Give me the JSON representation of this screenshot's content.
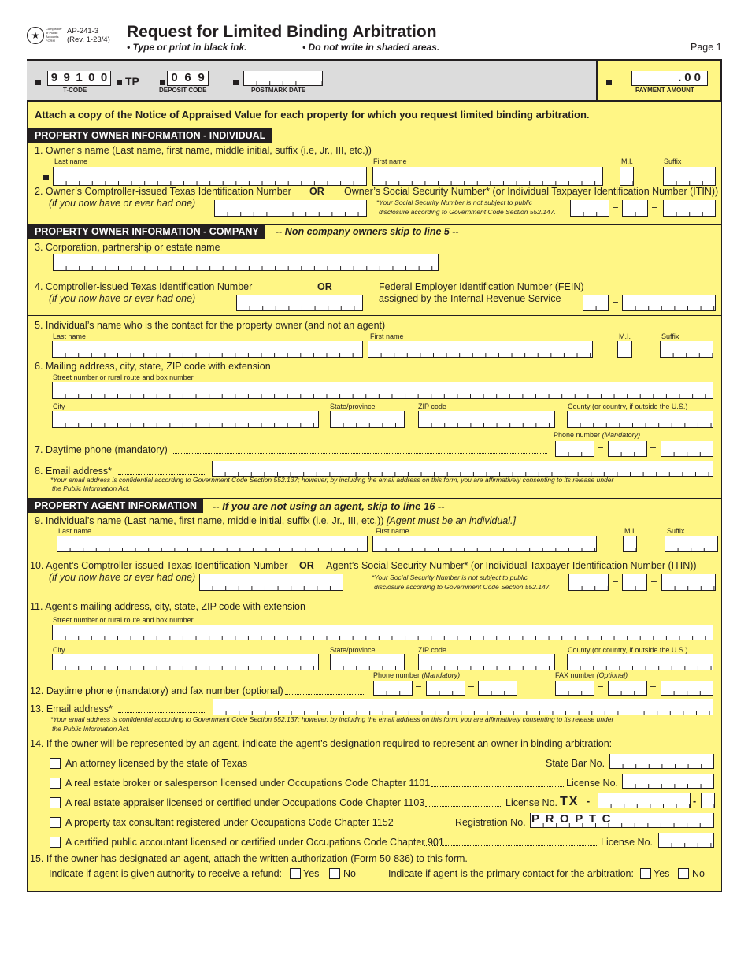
{
  "header": {
    "logo_text": "Comptroller of Public Accounts FORM",
    "form_id": "AP-241-3",
    "revision": "(Rev. 1-23/4)",
    "title": "Request for Limited Binding Arbitration",
    "instruction1": "• Type or print in black ink.",
    "instruction2": "• Do not write in shaded areas.",
    "page": "Page 1"
  },
  "codes": {
    "tcode_value": "99100",
    "tcode_label": "T-CODE",
    "tp": "TP",
    "deposit_value": "069",
    "deposit_label": "DEPOSIT  CODE",
    "postmark_label": "POSTMARK DATE",
    "payment_value": ".00",
    "payment_label": "PAYMENT AMOUNT"
  },
  "attach_note": "Attach a copy of the Notice of Appraised Value for each property for which you request limited binding arbitration.",
  "sections": {
    "individual": "PROPERTY OWNER INFORMATION - INDIVIDUAL",
    "company": "PROPERTY OWNER INFORMATION - COMPANY",
    "company_skip": "-- Non company owners skip to line 5 --",
    "agent": "PROPERTY AGENT INFORMATION",
    "agent_skip": "-- If you are not using an agent, skip to line 16 --"
  },
  "labels": {
    "last_name": "Last name",
    "first_name": "First name",
    "mi": "M.I.",
    "suffix": "Suffix",
    "street": "Street number or rural route and box number",
    "city": "City",
    "state": "State/province",
    "zip": "ZIP code",
    "county": "County (or country, if outside the U.S.)",
    "phone": "Phone number",
    "mandatory": "(Mandatory)",
    "fax": "FAX number",
    "optional": "(Optional)",
    "or": "OR",
    "dash": "–",
    "ssn_note1": "*Your Social Security Number is not subject to public",
    "ssn_note2": "disclosure according to Government Code Section 552.147.",
    "email_note1": "*Your email address is confidential according to Government Code Section 552.137; however, by including the email address on this form, you are affirmatively consenting to its release under",
    "email_note2": "the Public Information Act."
  },
  "lines": {
    "l1": "1.  Owner’s name (Last name, first name, middle initial, suffix (i.e, Jr., III, etc.))",
    "l2": "2.  Owner’s Comptroller-issued Texas Identification Number",
    "l2b": "(if you now have or ever had one)",
    "l2c": "Owner’s Social Security Number* (or Individual Taxpayer Identification Number (ITIN))",
    "l3": "3.  Corporation, partnership or estate name",
    "l4": "4.  Comptroller-issued Texas Identification Number",
    "l4b": "(if you now have or ever had one)",
    "l4c": "Federal Employer Identification Number (FEIN)",
    "l4d": "assigned by the Internal Revenue Service",
    "l5": "5.  Individual’s name who is the contact for the property owner (and not an agent)",
    "l6": "6.  Mailing address, city, state, ZIP code with extension",
    "l7": "7.  Daytime phone (mandatory)",
    "l8": "8.  Email address*",
    "l9": "9.  Individual’s name (Last name, first name, middle initial, suffix (i.e, Jr., III, etc.))",
    "l9b": "[Agent must be an individual.]",
    "l10": "10.  Agent’s Comptroller-issued Texas Identification Number",
    "l10b": "(if you now have or ever had one)",
    "l10c": "Agent’s Social Security Number* (or Individual Taxpayer Identification Number (ITIN))",
    "l11": "11.  Agent’s mailing address, city, state, ZIP code with extension",
    "l12": "12.  Daytime phone (mandatory) and fax number (optional)",
    "l13": "13.  Email address*",
    "l14": "14.  If the owner will be represented by an agent, indicate the agent’s designation required to represent an owner in binding arbitration:",
    "l15": "15.  If the owner has designated an agent, attach the written authorization (Form 50-836) to this form.",
    "l15b": "Indicate if agent is given authority to receive a refund:",
    "l15c": "Indicate if agent is the primary contact for the arbitration:",
    "yes": "Yes",
    "no": "No"
  },
  "designations": [
    {
      "text": "An attorney licensed by the state of Texas",
      "field": "State Bar No."
    },
    {
      "text": "A real estate broker or salesperson licensed under Occupations Code Chapter 1101",
      "field": "License No."
    },
    {
      "text": "A real estate appraiser licensed or certified under Occupations Code Chapter 1103",
      "field": "License No.",
      "prefix": "TX",
      "sep": "-"
    },
    {
      "text": "A property tax consultant registered under Occupations Code Chapter 1152",
      "field": "Registration No.",
      "value": "PROPTC"
    },
    {
      "text": "A certified public accountant licensed or certified under Occupations Code Chapter 901",
      "field": "License No."
    }
  ]
}
